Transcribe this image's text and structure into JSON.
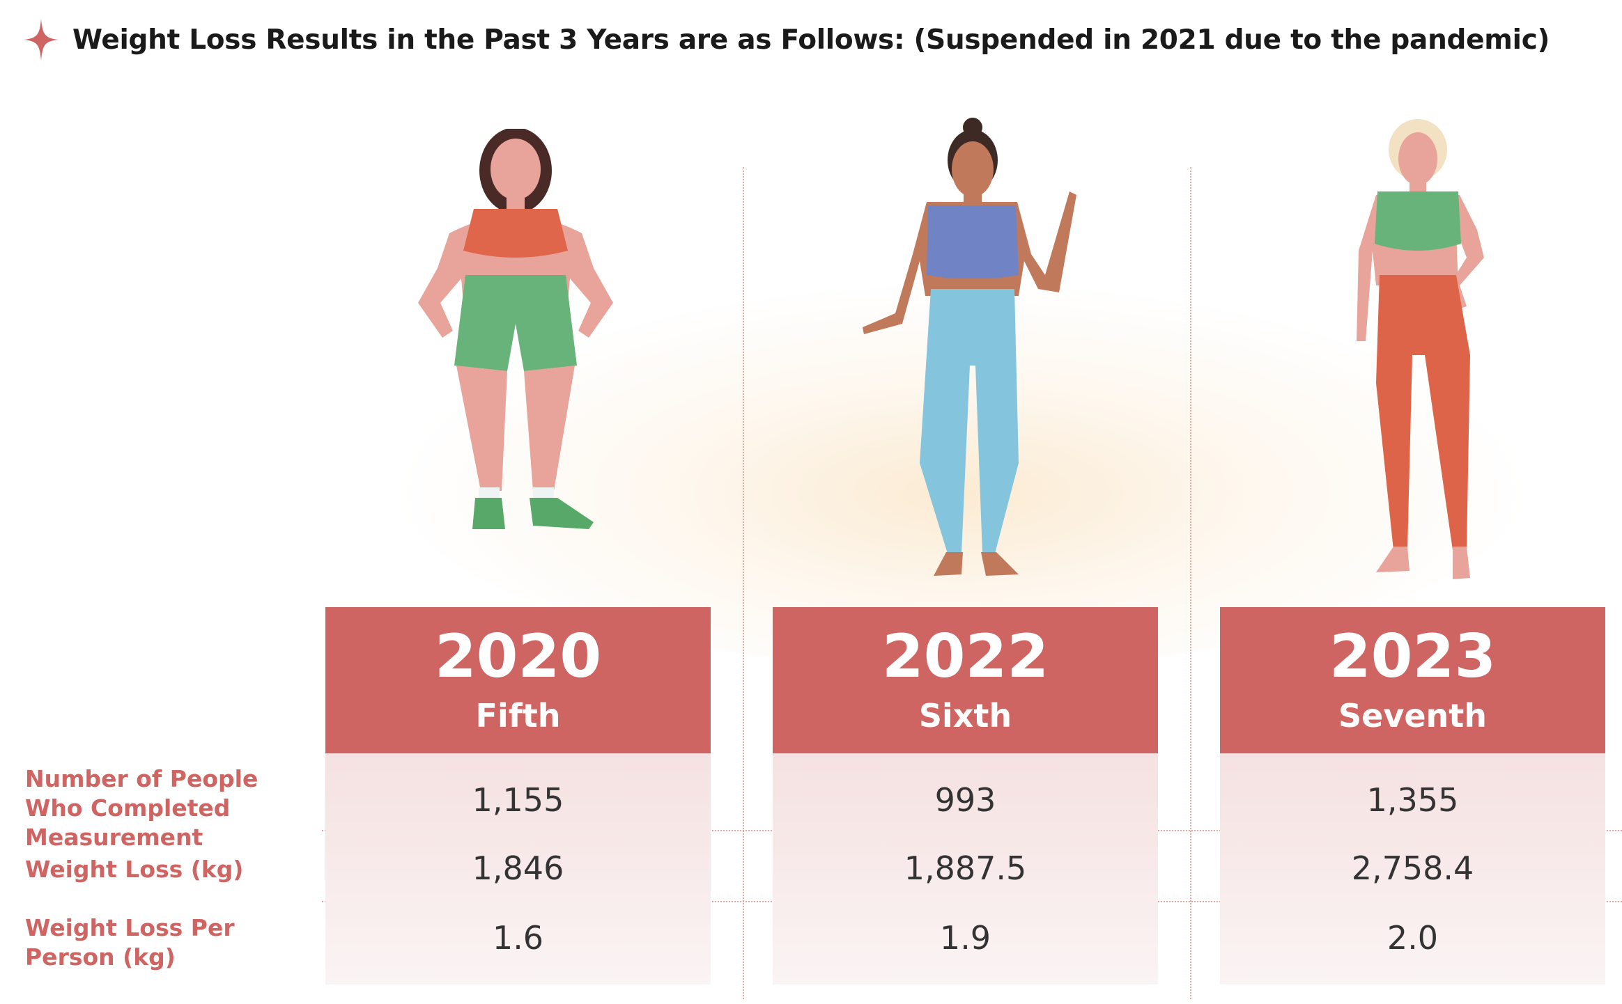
{
  "header": {
    "title": "Weight Loss Results in the Past 3 Years are as Follows: (Suspended in 2021 due to the pandemic)",
    "icon": "sparkle-icon",
    "accent_color": "#cf6562"
  },
  "row_labels": [
    "Number of People Who Completed Measurement",
    "Weight Loss (kg)",
    "Weight Loss Per Person (kg)"
  ],
  "columns": [
    {
      "year": "2020",
      "ordinal": "Fifth",
      "people": "1,155",
      "weight_loss": "1,846",
      "per_person": "1.6"
    },
    {
      "year": "2022",
      "ordinal": "Sixth",
      "people": "993",
      "weight_loss": "1,887.5",
      "per_person": "1.9"
    },
    {
      "year": "2023",
      "ordinal": "Seventh",
      "people": "1,355",
      "weight_loss": "2,758.4",
      "per_person": "2.0"
    }
  ],
  "colors": {
    "header_fill": "#cf6562",
    "row_fill": "#f5e1e1",
    "label_text": "#cf6562"
  }
}
